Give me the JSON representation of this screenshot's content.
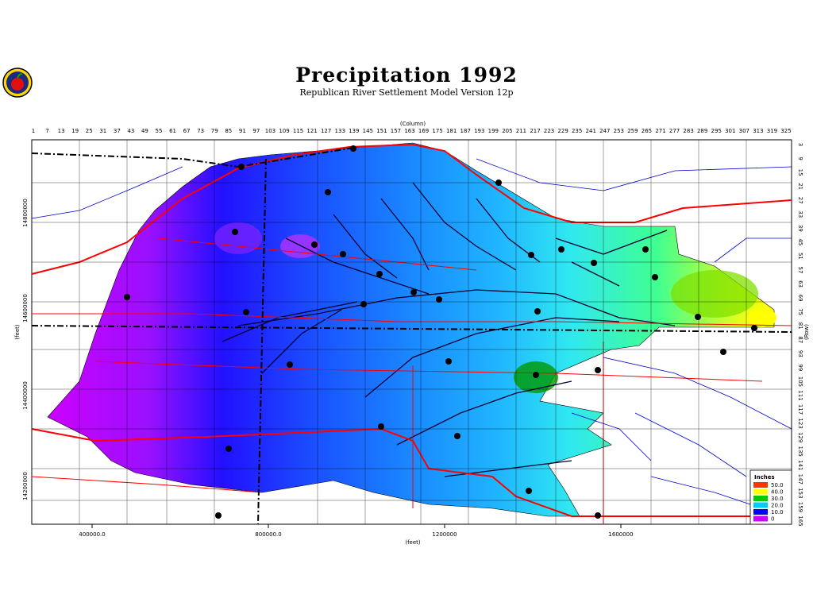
{
  "title": "Precipitation  1992",
  "subtitle": "Republican River Settlement Model Version 12p",
  "top_axis_label": "(Column)",
  "bottom_axis_label": "(feet)",
  "left_axis_label": "(feet)",
  "right_axis_label": "(Row)",
  "column_ticks": [
    "1",
    "7",
    "13",
    "19",
    "25",
    "31",
    "37",
    "43",
    "49",
    "55",
    "61",
    "67",
    "73",
    "79",
    "85",
    "91",
    "97",
    "103",
    "109",
    "115",
    "121",
    "127",
    "133",
    "139",
    "145",
    "151",
    "157",
    "163",
    "169",
    "175",
    "181",
    "187",
    "193",
    "199",
    "205",
    "211",
    "217",
    "223",
    "229",
    "235",
    "241",
    "247",
    "253",
    "259",
    "265",
    "271",
    "277",
    "283",
    "289",
    "295",
    "301",
    "307",
    "313",
    "319",
    "325"
  ],
  "row_ticks": [
    "3",
    "9",
    "15",
    "21",
    "27",
    "33",
    "39",
    "45",
    "51",
    "57",
    "63",
    "69",
    "75",
    "81",
    "87",
    "93",
    "99",
    "105",
    "111",
    "117",
    "123",
    "129",
    "135",
    "141",
    "147",
    "153",
    "159",
    "165"
  ],
  "x_ticks": [
    "400000.0",
    "800000.0",
    "1200000",
    "1600000"
  ],
  "y_ticks": [
    "14800000",
    "14600000",
    "14400000",
    "14200000"
  ],
  "legend": {
    "title": "Inches",
    "items": [
      {
        "label": "50.0",
        "color": "#ff3300"
      },
      {
        "label": "40.0",
        "color": "#ffff00"
      },
      {
        "label": "30.0",
        "color": "#00cc00"
      },
      {
        "label": "20.0",
        "color": "#00ccff"
      },
      {
        "label": "10.0",
        "color": "#0000ff"
      },
      {
        "label": "0",
        "color": "#cc00ff"
      }
    ]
  }
}
